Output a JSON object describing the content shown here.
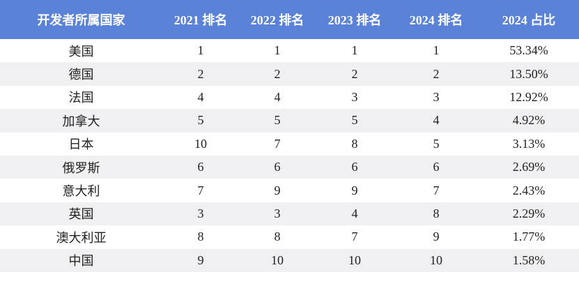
{
  "table": {
    "header": [
      "开发者所属国家",
      "2021 排名",
      "2022 排名",
      "2023 排名",
      "2024 排名",
      "2024 占比"
    ],
    "rows": [
      [
        "美国",
        "1",
        "1",
        "1",
        "1",
        "53.34%"
      ],
      [
        "德国",
        "2",
        "2",
        "2",
        "2",
        "13.50%"
      ],
      [
        "法国",
        "4",
        "4",
        "3",
        "3",
        "12.92%"
      ],
      [
        "加拿大",
        "5",
        "5",
        "5",
        "4",
        "4.92%"
      ],
      [
        "日本",
        "10",
        "7",
        "8",
        "5",
        "3.13%"
      ],
      [
        "俄罗斯",
        "6",
        "6",
        "6",
        "6",
        "2.69%"
      ],
      [
        "意大利",
        "7",
        "9",
        "9",
        "7",
        "2.43%"
      ],
      [
        "英国",
        "3",
        "3",
        "4",
        "8",
        "2.29%"
      ],
      [
        "澳大利亚",
        "8",
        "8",
        "7",
        "9",
        "1.77%"
      ],
      [
        "中国",
        "9",
        "10",
        "10",
        "10",
        "1.58%"
      ]
    ]
  }
}
